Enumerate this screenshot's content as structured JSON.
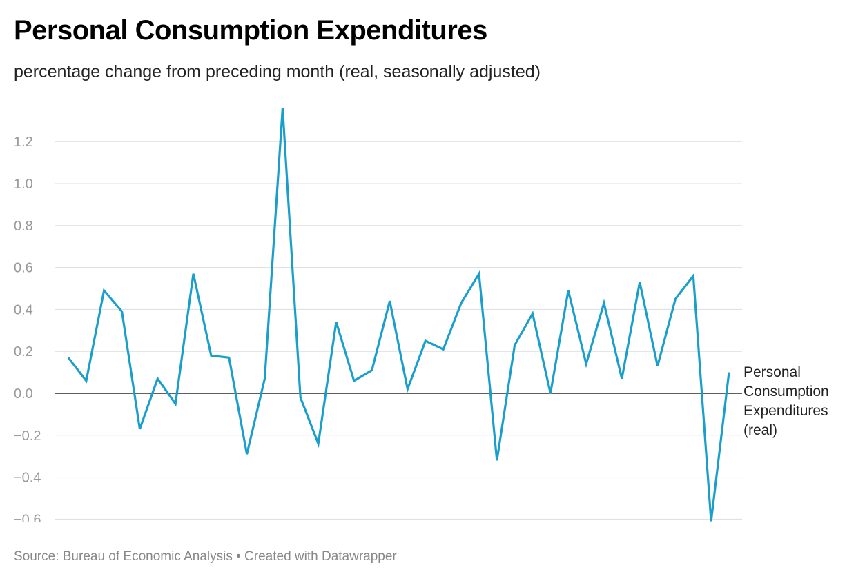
{
  "chart_data": {
    "type": "line",
    "title": "Personal Consumption Expenditures",
    "subtitle": "percentage change from preceding month (real, seasonally adjusted)",
    "source": "Source: Bureau of Economic Analysis • Created with Datawrapper",
    "xlabel": "",
    "ylabel": "",
    "ylim": [
      -0.6,
      1.36
    ],
    "yticks": [
      1.2,
      1.0,
      0.8,
      0.6,
      0.4,
      0.2,
      0.0,
      -0.2,
      -0.4,
      -0.6
    ],
    "ytick_labels": [
      "1.2",
      "1.0",
      "0.8",
      "0.6",
      "0.4",
      "0.2",
      "0.0",
      "−0.2",
      "−0.4",
      "−0.6"
    ],
    "grid": true,
    "series": [
      {
        "name": "Personal Consumption Expenditures (real)",
        "label_lines": [
          "Personal",
          "Consumption",
          "Expenditures",
          "(real)"
        ],
        "color": "#1a9fcc",
        "values": [
          0.17,
          0.06,
          0.49,
          0.39,
          -0.17,
          0.07,
          -0.05,
          0.57,
          0.18,
          0.17,
          -0.29,
          0.07,
          1.36,
          -0.02,
          -0.24,
          0.34,
          0.06,
          0.11,
          0.44,
          0.02,
          0.25,
          0.21,
          0.43,
          0.57,
          -0.32,
          0.23,
          0.38,
          0.0,
          0.49,
          0.14,
          0.43,
          0.07,
          0.53,
          0.13,
          0.45,
          0.56,
          -0.61,
          0.1
        ]
      }
    ]
  }
}
